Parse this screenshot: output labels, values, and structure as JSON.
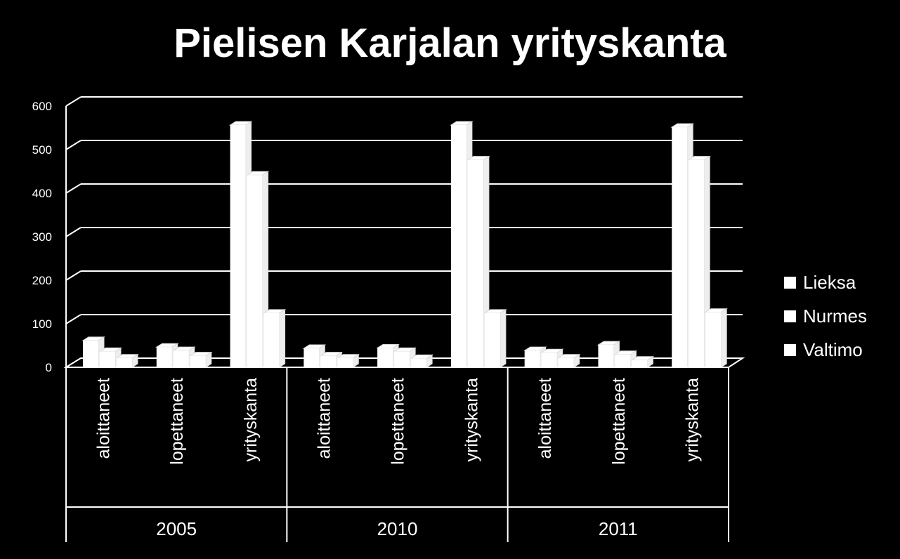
{
  "chart_data": {
    "type": "bar",
    "title": "Pielisen Karjalan yrityskanta",
    "groups": [
      "2005",
      "2010",
      "2011"
    ],
    "categories": [
      "aloittaneet",
      "lopettaneet",
      "yrityskanta"
    ],
    "series": [
      {
        "name": "Lieksa",
        "values": [
          [
            55,
            40,
            550
          ],
          [
            37,
            38,
            550
          ],
          [
            32,
            45,
            545
          ]
        ]
      },
      {
        "name": "Nurmes",
        "values": [
          [
            30,
            32,
            435
          ],
          [
            20,
            30,
            470
          ],
          [
            27,
            23,
            470
          ]
        ]
      },
      {
        "name": "Valtimo",
        "values": [
          [
            15,
            20,
            118
          ],
          [
            15,
            14,
            118
          ],
          [
            15,
            10,
            120
          ]
        ]
      }
    ],
    "ylim": [
      0,
      600
    ],
    "yticks": [
      0,
      100,
      200,
      300,
      400,
      500,
      600
    ],
    "grid": true,
    "legend_position": "right",
    "bar_color": "#ffffff",
    "background": "#000000"
  }
}
